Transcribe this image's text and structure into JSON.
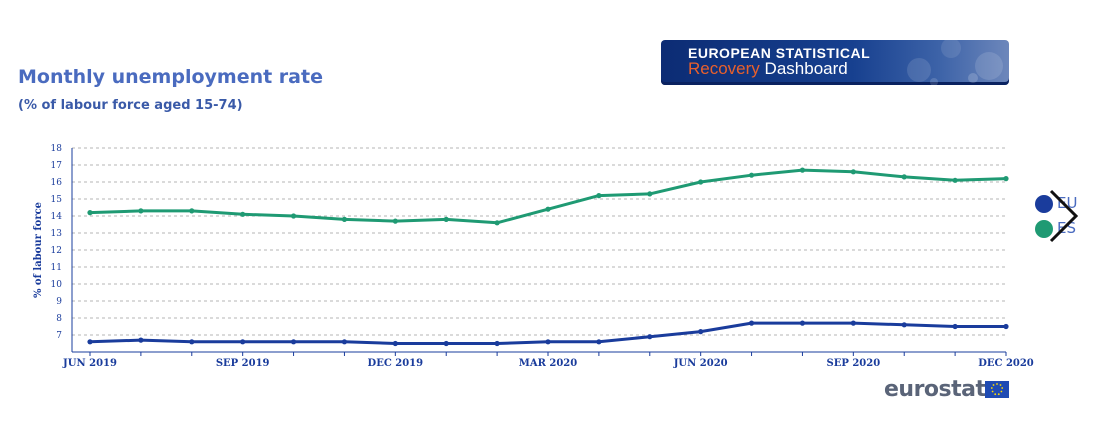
{
  "header": {
    "title": "Monthly unemployment rate",
    "subtitle": "(% of labour force aged 15-74)"
  },
  "banner": {
    "line1": "EUROPEAN STATISTICAL",
    "line2_highlight": "Recovery",
    "line2_rest": "Dashboard"
  },
  "footer": {
    "logo_text": "eurostat"
  },
  "colors": {
    "EU": "#1a3c9c",
    "ES": "#1f9a73",
    "accent": "#e8602c"
  },
  "chart_data": {
    "type": "line",
    "ylabel": "% of labour force",
    "ylim": [
      6,
      18
    ],
    "yticks": [
      7,
      8,
      9,
      10,
      11,
      12,
      13,
      14,
      15,
      16,
      17,
      18
    ],
    "x": [
      "2019-06",
      "2019-07",
      "2019-08",
      "2019-09",
      "2019-10",
      "2019-11",
      "2019-12",
      "2020-01",
      "2020-02",
      "2020-03",
      "2020-04",
      "2020-05",
      "2020-06",
      "2020-07",
      "2020-08",
      "2020-09",
      "2020-10",
      "2020-11",
      "2020-12"
    ],
    "xtick_labels": [
      "JUN 2019",
      "SEP 2019",
      "DEC 2019",
      "MAR 2020",
      "JUN 2020",
      "SEP 2020",
      "DEC 2020"
    ],
    "grid": true,
    "legend_position": "right",
    "series": [
      {
        "name": "EU",
        "values": [
          6.6,
          6.7,
          6.6,
          6.6,
          6.6,
          6.6,
          6.5,
          6.5,
          6.5,
          6.6,
          6.6,
          6.9,
          7.2,
          7.7,
          7.7,
          7.7,
          7.6,
          7.5,
          7.5
        ]
      },
      {
        "name": "ES",
        "values": [
          14.2,
          14.3,
          14.3,
          14.1,
          14.0,
          13.8,
          13.7,
          13.8,
          13.6,
          14.4,
          15.2,
          15.3,
          16.0,
          16.4,
          16.7,
          16.6,
          16.3,
          16.1,
          16.2
        ]
      }
    ]
  }
}
